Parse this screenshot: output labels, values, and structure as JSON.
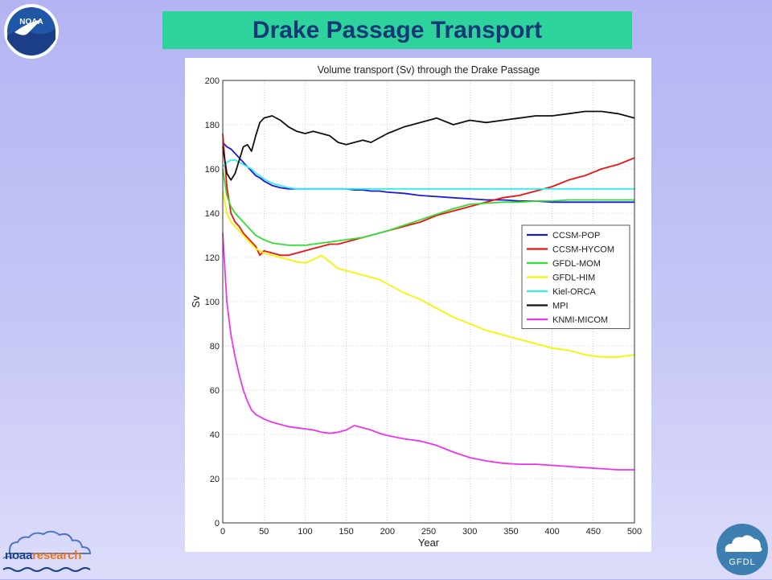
{
  "slide": {
    "title": "Drake Passage Transport"
  },
  "logos": {
    "noaa_text": "NOAA",
    "noaaresearch_part1": "noaa",
    "noaaresearch_part2": "research",
    "gfdl_text": "GFDL"
  },
  "colors": {
    "title_bar": "#2ed39b",
    "title_text": "#143878",
    "background": "#c0c0f6"
  },
  "chart_data": {
    "type": "line",
    "title": "Volume transport (Sv) through the Drake Passage",
    "xlabel": "Year",
    "ylabel": "Sv",
    "xlim": [
      0,
      500
    ],
    "ylim": [
      0,
      200
    ],
    "xticks": [
      0,
      50,
      100,
      150,
      200,
      250,
      300,
      350,
      400,
      450,
      500
    ],
    "yticks": [
      0,
      20,
      40,
      60,
      80,
      100,
      120,
      140,
      160,
      180,
      200
    ],
    "grid": true,
    "legend_position": "right",
    "x": [
      0,
      5,
      10,
      15,
      20,
      25,
      30,
      35,
      40,
      45,
      50,
      60,
      70,
      80,
      90,
      100,
      110,
      120,
      130,
      140,
      150,
      160,
      170,
      180,
      190,
      200,
      220,
      240,
      260,
      280,
      300,
      320,
      340,
      360,
      380,
      400,
      420,
      440,
      460,
      480,
      500
    ],
    "series": [
      {
        "name": "CCSM-POP",
        "color": "#1a1adc",
        "values": [
          172,
          170,
          169,
          167,
          165,
          163,
          161,
          159,
          157,
          156,
          154.5,
          152.5,
          151.5,
          151,
          151,
          151,
          151,
          151,
          151,
          151,
          151,
          150.5,
          150.5,
          150,
          150,
          149.5,
          149,
          148,
          147.5,
          147,
          146.5,
          146,
          146,
          145.5,
          145.5,
          145,
          145,
          145,
          145,
          145,
          145
        ]
      },
      {
        "name": "CCSM-HYCOM",
        "color": "#ee1111",
        "values": [
          176,
          152,
          140,
          136,
          134,
          131,
          129,
          127,
          125,
          121,
          123,
          122,
          121,
          121,
          122,
          123,
          124,
          125,
          126,
          126,
          127,
          128,
          129,
          130,
          131,
          132,
          134,
          136,
          139,
          141,
          143,
          145,
          147,
          148,
          150,
          152,
          155,
          157,
          160,
          162,
          165
        ]
      },
      {
        "name": "GFDL-MOM",
        "color": "#33dd33",
        "values": [
          160,
          148,
          143,
          140,
          138,
          136,
          134,
          132,
          130,
          129,
          128,
          126.5,
          126,
          125.5,
          125.5,
          125.5,
          126,
          126.5,
          127,
          127.5,
          128,
          128.5,
          129,
          130,
          131,
          132,
          134.5,
          137,
          139.5,
          142,
          144,
          144.5,
          145,
          145,
          145.5,
          145.5,
          146,
          146,
          146,
          146,
          146
        ]
      },
      {
        "name": "GFDL-HIM",
        "color": "#f5f500",
        "values": [
          150,
          140,
          136,
          134,
          132,
          130,
          128,
          126,
          124,
          123,
          122,
          121,
          120,
          119,
          118,
          117.5,
          119,
          121,
          118,
          115,
          114,
          113,
          112,
          111,
          110,
          108,
          104,
          101,
          97,
          93,
          90,
          87,
          85,
          83,
          81,
          79,
          78,
          76,
          75,
          75,
          76
        ]
      },
      {
        "name": "Kiel-ORCA",
        "color": "#33eeee",
        "values": [
          161,
          163,
          164,
          164,
          163,
          162,
          161,
          160,
          158,
          157,
          155.5,
          153.5,
          152.5,
          151.5,
          151,
          151,
          151,
          151,
          151,
          151,
          151,
          151,
          151,
          151,
          151,
          151,
          151,
          151,
          151,
          151,
          151,
          151,
          151,
          151,
          151,
          151,
          151,
          151,
          151,
          151,
          151
        ]
      },
      {
        "name": "MPI",
        "color": "#111111",
        "values": [
          170,
          158,
          155,
          158,
          164,
          170,
          171,
          168,
          175,
          181,
          183,
          184,
          182,
          179,
          177,
          176,
          177,
          176,
          175,
          172,
          171,
          172,
          173,
          172,
          174,
          176,
          179,
          181,
          183,
          180,
          182,
          181,
          182,
          183,
          184,
          184,
          185,
          186,
          186,
          185,
          183
        ]
      },
      {
        "name": "KNMI-MICOM",
        "color": "#ee33ee",
        "values": [
          131,
          100,
          85,
          75,
          67,
          60,
          55,
          51,
          49,
          48,
          47,
          45.5,
          44.5,
          43.5,
          43,
          42.5,
          42,
          41,
          40.5,
          41,
          42,
          44,
          43,
          42,
          40.5,
          39.5,
          38,
          37,
          35,
          32,
          29.5,
          28,
          27,
          26.5,
          26.5,
          26,
          25.5,
          25,
          24.5,
          24,
          24
        ]
      }
    ]
  }
}
